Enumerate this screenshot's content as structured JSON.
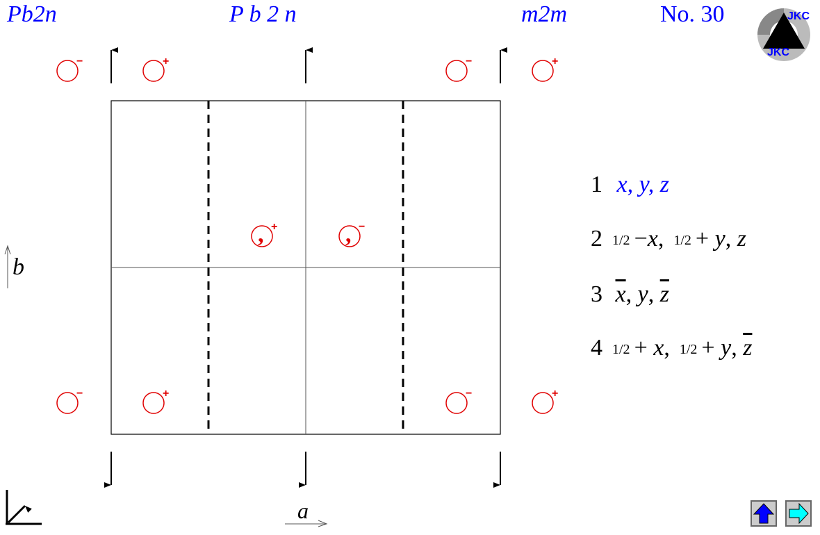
{
  "header": {
    "short_symbol": "Pb2n",
    "full_symbol": "P b 2 n",
    "point_group": "m2m",
    "number": "No. 30"
  },
  "logo": {
    "text": "JKC"
  },
  "axes": {
    "a": "a",
    "b": "b"
  },
  "operations": [
    {
      "n": "1",
      "text": "x, y, z",
      "color": "#0000ff"
    },
    {
      "n": "2",
      "half1": "1/2",
      "sign1": "−",
      "v1": "x",
      "half2": "1/2",
      "sign2": "+",
      "v2": "y",
      "v3": "z"
    },
    {
      "n": "3",
      "v1": "x",
      "v2": "y",
      "v3": "z"
    },
    {
      "n": "4",
      "half1": "1/2",
      "sign1": "+",
      "v1": "x",
      "half2": "1/2",
      "sign2": "+",
      "v2": "y",
      "v3": "z"
    }
  ],
  "signs": {
    "plus": "+",
    "minus": "−"
  },
  "colors": {
    "title": "#0000ff",
    "positions": "#e00000",
    "up_button": "#0000ff",
    "next_button": "#00ffff"
  },
  "nav": {
    "up": "arrow-up",
    "next": "arrow-right"
  }
}
